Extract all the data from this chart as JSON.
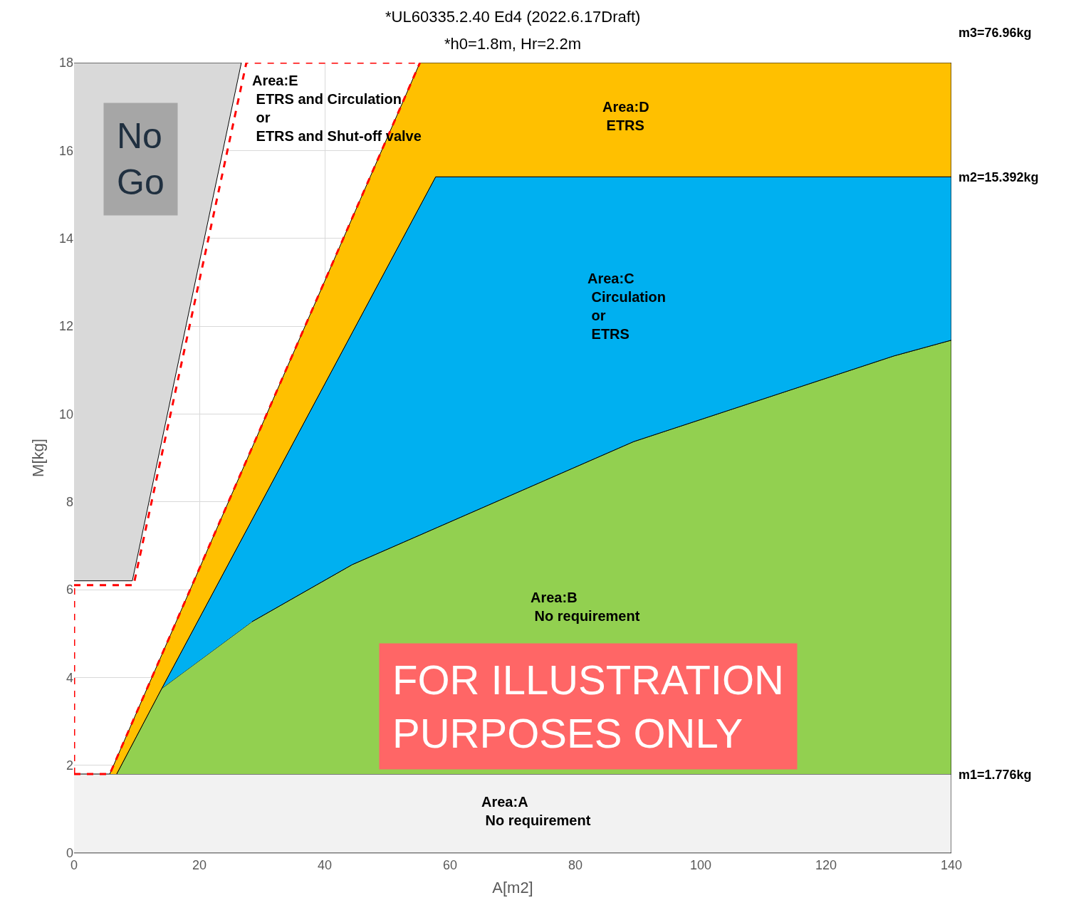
{
  "chart_data": {
    "type": "area",
    "title": "*UL60335.2.40 Ed4 (2022.6.17Draft)",
    "subtitle": "*h0=1.8m, Hr=2.2m",
    "xlabel": "A[m2]",
    "ylabel": "M[kg]",
    "xlim": [
      0,
      140
    ],
    "ylim": [
      0,
      18
    ],
    "xticks": [
      0,
      20,
      40,
      60,
      80,
      100,
      120,
      140
    ],
    "yticks": [
      0,
      2,
      4,
      6,
      8,
      10,
      12,
      14,
      16,
      18
    ],
    "grid": true,
    "series": [
      {
        "color": "#f2f2f2",
        "x": [
          0,
          140,
          140,
          0
        ],
        "values": [
          0,
          0,
          1.8,
          1.8
        ]
      },
      {
        "color": "#92d050",
        "x": [
          6.8,
          14,
          28.4,
          44.4,
          89.3,
          130.8,
          140,
          140
        ],
        "values": [
          1.8,
          3.75,
          5.27,
          6.57,
          9.37,
          11.32,
          11.68,
          1.8
        ]
      },
      {
        "color": "#00b0f0",
        "x": [
          14,
          57.7,
          140,
          140,
          130.8,
          89.3,
          44.4,
          28.4
        ],
        "values": [
          3.75,
          15.4,
          15.4,
          11.68,
          11.32,
          9.37,
          6.57,
          5.27
        ]
      },
      {
        "color": "#ffc000",
        "x": [
          5.7,
          55.2,
          140,
          140,
          57.7,
          14,
          6.8
        ],
        "values": [
          1.8,
          18,
          18,
          15.4,
          15.4,
          3.75,
          1.8
        ]
      },
      {
        "color": "#d9d9d9",
        "x": [
          0,
          9.3,
          26.7,
          0
        ],
        "values": [
          6.2,
          6.2,
          18,
          18
        ]
      },
      {
        "type": "line",
        "color": "#ff0000",
        "line_style": "dashed",
        "x": [
          0,
          5.7,
          55.2
        ],
        "values": [
          1.8,
          1.8,
          18
        ]
      },
      {
        "type": "line",
        "color": "#ff0000",
        "line_style": "dashed",
        "x": [
          0,
          9.5,
          27.5,
          55.2
        ],
        "values": [
          6.1,
          6.1,
          18,
          18
        ]
      },
      {
        "type": "line",
        "color": "#ff0000",
        "line_style": "dashed",
        "x": [
          0,
          0
        ],
        "values": [
          1.8,
          6.1
        ]
      }
    ],
    "annotations": [
      "Area:E\n ETRS and Circulation\n or\n ETRS and Shut-off valve",
      "Area:D\n ETRS",
      "Area:C\n Circulation\n or\n ETRS",
      "Area:B\n No requirement",
      "Area:A\n No requirement",
      "No\nGo",
      "FOR ILLUSTRATION\nPURPOSES ONLY",
      {
        "text": "m2=15.392kg",
        "x": 140,
        "y": 15.392
      },
      {
        "text": "m1=1.776kg",
        "x": 140,
        "y": 1.776
      },
      "m3=76.96kg"
    ]
  }
}
